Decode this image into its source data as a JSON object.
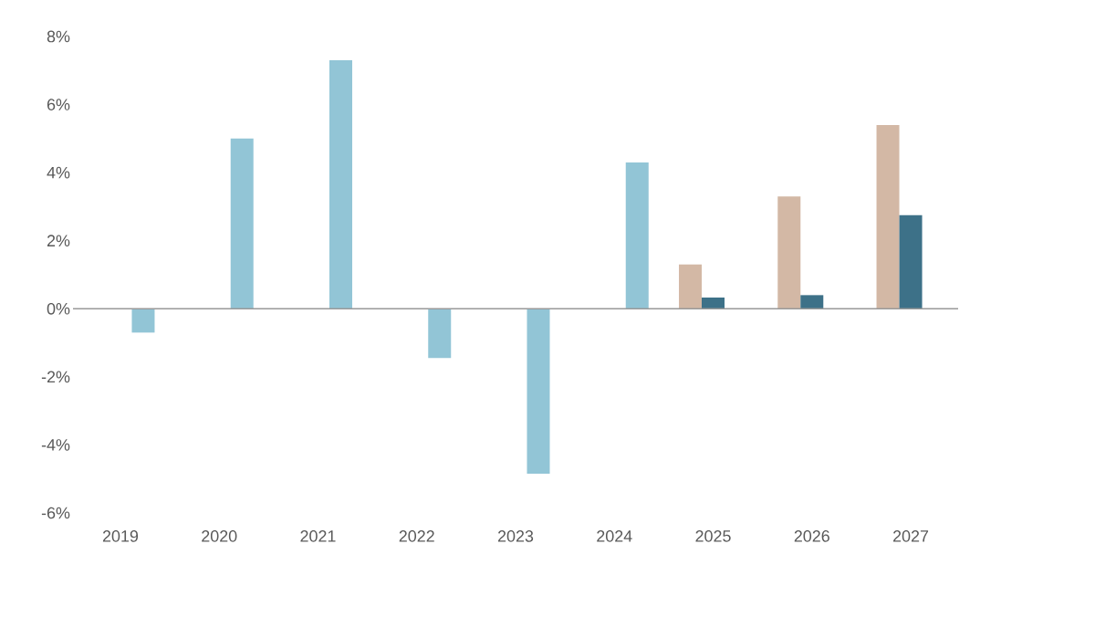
{
  "chart_data": {
    "type": "bar",
    "categories": [
      "2019",
      "2020",
      "2021",
      "2022",
      "2023",
      "2024",
      "2025",
      "2026",
      "2027"
    ],
    "series": [
      {
        "color": "#d3b8a5",
        "values": [
          null,
          null,
          null,
          null,
          null,
          null,
          1.3,
          3.3,
          5.4
        ]
      },
      {
        "color": "#3d7188",
        "values": [
          null,
          null,
          null,
          null,
          null,
          null,
          0.33,
          0.4,
          2.75
        ]
      },
      {
        "color": "#92c5d6",
        "values": [
          -0.7,
          5.0,
          7.3,
          -1.45,
          -4.85,
          4.3,
          null,
          null,
          null
        ]
      }
    ],
    "ylim": [
      -6,
      8
    ],
    "yticks": [
      {
        "value": -6,
        "label": "-6%"
      },
      {
        "value": -4,
        "label": "-4%"
      },
      {
        "value": -2,
        "label": "-2%"
      },
      {
        "value": 0,
        "label": "0%"
      },
      {
        "value": 2,
        "label": "2%"
      },
      {
        "value": 4,
        "label": "4%"
      },
      {
        "value": 6,
        "label": "6%"
      },
      {
        "value": 8,
        "label": "8%"
      }
    ]
  }
}
